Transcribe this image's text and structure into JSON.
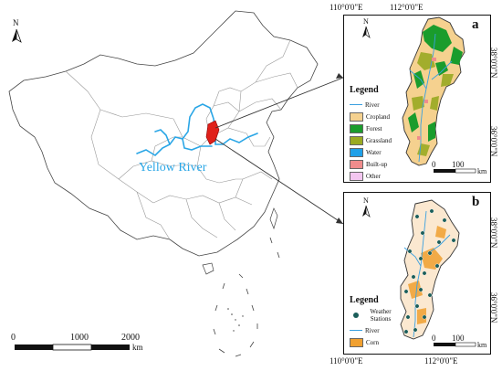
{
  "main_map": {
    "north_label": "N",
    "river_label": "Yellow River",
    "scale": {
      "ticks": [
        "0",
        "1000",
        "2000"
      ],
      "unit": "km"
    }
  },
  "panel_a": {
    "letter": "a",
    "top_coords": [
      "110°0'0\"E",
      "112°0'0\"E"
    ],
    "right_coords": [
      "38°0'0\"N",
      "36°0'0\"N"
    ],
    "north_label": "N",
    "legend": {
      "title": "Legend",
      "items": [
        {
          "label": "River",
          "color": "#3aa0e0",
          "kind": "line"
        },
        {
          "label": "Cropland",
          "color": "#f5d18f",
          "kind": "box"
        },
        {
          "label": "Forest",
          "color": "#1a9c2c",
          "kind": "box"
        },
        {
          "label": "Grassland",
          "color": "#9aaa22",
          "kind": "box"
        },
        {
          "label": "Water",
          "color": "#1fa0e8",
          "kind": "box"
        },
        {
          "label": "Built-up",
          "color": "#f08c8c",
          "kind": "box"
        },
        {
          "label": "Other",
          "color": "#f3c6f0",
          "kind": "box"
        }
      ]
    },
    "scale": {
      "ticks": [
        "0",
        "100"
      ],
      "unit": "km"
    }
  },
  "panel_b": {
    "letter": "b",
    "bottom_coords": [
      "110°0'0\"E",
      "112°0'0\"E"
    ],
    "right_coords": [
      "38°0'0\"N",
      "36°0'0\"N"
    ],
    "north_label": "N",
    "legend": {
      "title": "Legend",
      "items": [
        {
          "label": "Weather Stations",
          "color": "#1b5e5a",
          "kind": "dot"
        },
        {
          "label": "River",
          "color": "#3aa0e0",
          "kind": "line"
        },
        {
          "label": "Corn",
          "color": "#f0a030",
          "kind": "box"
        }
      ]
    },
    "scale": {
      "ticks": [
        "0",
        "100"
      ],
      "unit": "km"
    }
  }
}
